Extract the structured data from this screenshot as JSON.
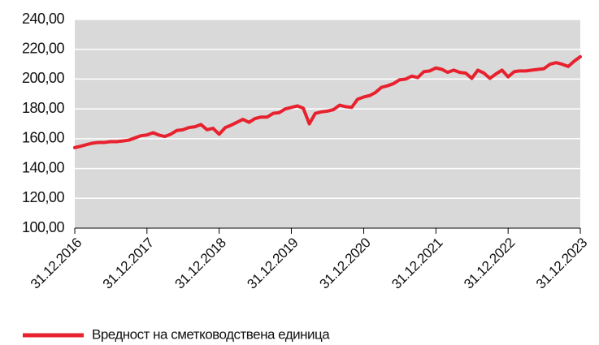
{
  "chart_data": {
    "type": "line",
    "x": [
      "2016-12-31",
      "2017-01-31",
      "2017-02-28",
      "2017-03-31",
      "2017-04-30",
      "2017-05-31",
      "2017-06-30",
      "2017-07-31",
      "2017-08-31",
      "2017-09-30",
      "2017-10-31",
      "2017-11-30",
      "2017-12-31",
      "2018-01-31",
      "2018-02-28",
      "2018-03-31",
      "2018-04-30",
      "2018-05-31",
      "2018-06-30",
      "2018-07-31",
      "2018-08-31",
      "2018-09-30",
      "2018-10-31",
      "2018-11-30",
      "2018-12-31",
      "2019-01-31",
      "2019-02-28",
      "2019-03-31",
      "2019-04-30",
      "2019-05-31",
      "2019-06-30",
      "2019-07-31",
      "2019-08-31",
      "2019-09-30",
      "2019-10-31",
      "2019-11-30",
      "2019-12-31",
      "2020-01-31",
      "2020-02-29",
      "2020-03-31",
      "2020-04-30",
      "2020-05-31",
      "2020-06-30",
      "2020-07-31",
      "2020-08-31",
      "2020-09-30",
      "2020-10-31",
      "2020-11-30",
      "2020-12-31",
      "2021-01-31",
      "2021-02-28",
      "2021-03-31",
      "2021-04-30",
      "2021-05-31",
      "2021-06-30",
      "2021-07-31",
      "2021-08-31",
      "2021-09-30",
      "2021-10-31",
      "2021-11-30",
      "2021-12-31",
      "2022-01-31",
      "2022-02-28",
      "2022-03-31",
      "2022-04-30",
      "2022-05-31",
      "2022-06-30",
      "2022-07-31",
      "2022-08-31",
      "2022-09-30",
      "2022-10-31",
      "2022-11-30",
      "2022-12-31",
      "2023-01-31",
      "2023-02-28",
      "2023-03-31",
      "2023-04-30",
      "2023-05-31",
      "2023-06-30",
      "2023-07-31",
      "2023-08-31",
      "2023-09-30",
      "2023-10-31",
      "2023-11-30",
      "2023-12-31"
    ],
    "series": [
      {
        "name": "Вредност на сметководствена единица",
        "color": "#e8212e",
        "values": [
          154,
          155,
          156,
          157,
          157.5,
          157.5,
          158,
          158,
          158.5,
          159,
          160.5,
          162,
          162.5,
          164,
          162.5,
          161.5,
          163,
          165.5,
          166,
          167.5,
          168,
          169.5,
          166,
          167,
          163,
          167.5,
          169,
          171,
          173,
          171,
          173.5,
          174.5,
          174.5,
          177,
          177.5,
          180,
          181,
          182,
          180.5,
          170,
          177,
          178,
          178.5,
          179.5,
          182.5,
          181.5,
          181,
          186.5,
          188,
          189,
          191,
          194.5,
          195.5,
          197,
          199.5,
          200,
          202,
          201,
          205,
          205.5,
          207.5,
          206.5,
          204.5,
          206,
          204.5,
          204,
          200.5,
          206,
          204,
          200.5,
          203.5,
          206,
          201.5,
          205,
          205.5,
          205.5,
          206,
          206.5,
          207,
          210,
          211,
          210,
          208.5,
          212,
          215
        ]
      }
    ],
    "xlim": [
      "2016-12-31",
      "2023-12-31"
    ],
    "xticks": [
      {
        "value": "2016-12-31",
        "label": "31.12.2016"
      },
      {
        "value": "2017-12-31",
        "label": "31.12.2017"
      },
      {
        "value": "2018-12-31",
        "label": "31.12.2018"
      },
      {
        "value": "2019-12-31",
        "label": "31.12.2019"
      },
      {
        "value": "2020-12-31",
        "label": "31.12.2020"
      },
      {
        "value": "2021-12-31",
        "label": "31.12.2021"
      },
      {
        "value": "2022-12-31",
        "label": "31.12.2022"
      },
      {
        "value": "2023-12-31",
        "label": "31.12.2023"
      }
    ],
    "ylim": [
      100,
      240
    ],
    "yticks": [
      {
        "value": 100,
        "label": "100,00"
      },
      {
        "value": 120,
        "label": "120,00"
      },
      {
        "value": 140,
        "label": "140,00"
      },
      {
        "value": 160,
        "label": "160,00"
      },
      {
        "value": 180,
        "label": "180,00"
      },
      {
        "value": 200,
        "label": "200,00"
      },
      {
        "value": 220,
        "label": "220,00"
      },
      {
        "value": 240,
        "label": "240,00"
      }
    ],
    "grid": true,
    "legend": "bottom"
  }
}
